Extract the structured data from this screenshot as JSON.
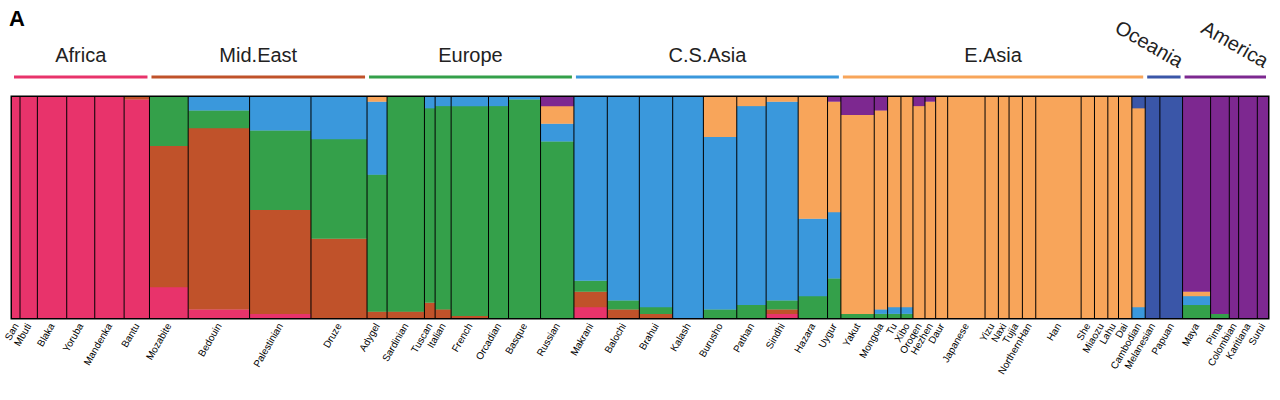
{
  "chart_data": {
    "type": "bar",
    "title": "A",
    "stacked": true,
    "tick_labels": "x",
    "ylim": [
      0,
      1
    ],
    "categories": [
      "San",
      "Mbuti",
      "Blaka",
      "Yoruba",
      "Mandenka",
      "Bantu",
      "Mozabite",
      "Bedouin",
      "Palestinian",
      "Druze",
      "Adygel",
      "Sardinian",
      "Tuscan",
      "Italian",
      "French",
      "Orcadian",
      "Basque",
      "Russian",
      "Makrani",
      "Balochi",
      "Brahui",
      "Kalash",
      "Burusho",
      "Pathan",
      "Sindhi",
      "Hazara",
      "Uygur",
      "Yakut",
      "Mongola",
      "Tu",
      "Xibo",
      "Oroqen",
      "Hezhen",
      "Daur",
      "Japanese",
      "Yizu",
      "Naxi",
      "Tujia",
      "NorthernHan",
      "Han",
      "She",
      "Miaozu",
      "Lahu",
      "Dai",
      "Cambodian",
      "Melanesian",
      "Papuan",
      "Maya",
      "Pima",
      "Colombian",
      "Karitiana",
      "Surui"
    ],
    "sizes": [
      6,
      13,
      22,
      21,
      22,
      19,
      29,
      46,
      46,
      42,
      15,
      28,
      8,
      12,
      28,
      15,
      24,
      25,
      25,
      24,
      25,
      23,
      25,
      22,
      24,
      22,
      10,
      25,
      10,
      10,
      9,
      9,
      8,
      9,
      28,
      10,
      8,
      10,
      10,
      34,
      10,
      10,
      8,
      10,
      10,
      11,
      17,
      21,
      14,
      7,
      14,
      8
    ],
    "series": [
      {
        "color": "#e8336b",
        "values": [
          1,
          1,
          1,
          1,
          1,
          0.99,
          0.14,
          0.04,
          0.02,
          0,
          0,
          0,
          0,
          0,
          0,
          0,
          0,
          0,
          0.05,
          0,
          0,
          0,
          0,
          0,
          0.02,
          0,
          0,
          0,
          0,
          0,
          0,
          0,
          0,
          0,
          0,
          0,
          0,
          0,
          0,
          0,
          0,
          0,
          0,
          0,
          0,
          0,
          0,
          0,
          0,
          0,
          0,
          0
        ]
      },
      {
        "color": "#c0522a",
        "values": [
          0,
          0,
          0,
          0,
          0,
          0.01,
          0.64,
          0.82,
          0.47,
          0.36,
          0.03,
          0.03,
          0.07,
          0.04,
          0.01,
          0,
          0,
          0,
          0.07,
          0.04,
          0.02,
          0,
          0,
          0,
          0.02,
          0,
          0,
          0,
          0,
          0,
          0,
          0,
          0,
          0,
          0,
          0,
          0,
          0,
          0,
          0,
          0,
          0,
          0,
          0,
          0,
          0,
          0,
          0,
          0,
          0,
          0,
          0
        ]
      },
      {
        "color": "#34a04a",
        "values": [
          0,
          0,
          0,
          0,
          0,
          0,
          0.22,
          0.08,
          0.36,
          0.45,
          0.62,
          0.97,
          0.88,
          0.92,
          0.95,
          0.96,
          0.99,
          0.8,
          0.05,
          0.04,
          0.03,
          0,
          0.04,
          0.06,
          0.04,
          0.1,
          0.18,
          0.02,
          0.02,
          0.02,
          0.02,
          0,
          0,
          0,
          0,
          0,
          0,
          0,
          0,
          0,
          0,
          0,
          0,
          0,
          0,
          0,
          0,
          0.06,
          0.02,
          0,
          0,
          0
        ]
      },
      {
        "color": "#3a98dc",
        "values": [
          0,
          0,
          0,
          0,
          0,
          0,
          0,
          0.06,
          0.15,
          0.19,
          0.33,
          0,
          0.05,
          0.04,
          0.04,
          0.04,
          0.01,
          0.08,
          0.83,
          0.92,
          0.95,
          1,
          0.78,
          0.9,
          0.9,
          0.35,
          0.3,
          0,
          0.02,
          0.03,
          0.03,
          0,
          0,
          0,
          0,
          0,
          0,
          0,
          0,
          0,
          0,
          0,
          0,
          0,
          0.05,
          0,
          0,
          0.04,
          0,
          0,
          0,
          0
        ]
      },
      {
        "color": "#f8a55a",
        "values": [
          0,
          0,
          0,
          0,
          0,
          0,
          0,
          0,
          0,
          0,
          0.02,
          0,
          0,
          0,
          0,
          0,
          0,
          0.08,
          0,
          0,
          0,
          0,
          0.18,
          0.04,
          0.02,
          0.55,
          0.5,
          0.9,
          0.9,
          0.95,
          0.95,
          0.96,
          0.98,
          1,
          1,
          1,
          1,
          1,
          1,
          1,
          1,
          1,
          1,
          1,
          0.9,
          0,
          0,
          0.02,
          0,
          0,
          0,
          0
        ]
      },
      {
        "color": "#3a56a8",
        "values": [
          0,
          0,
          0,
          0,
          0,
          0,
          0,
          0,
          0,
          0,
          0,
          0,
          0,
          0,
          0,
          0,
          0,
          0,
          0,
          0,
          0,
          0,
          0,
          0,
          0,
          0,
          0,
          0,
          0,
          0,
          0,
          0,
          0,
          0,
          0,
          0,
          0,
          0,
          0,
          0,
          0,
          0,
          0,
          0,
          0.05,
          1,
          1,
          0,
          0,
          0,
          0,
          0
        ]
      },
      {
        "color": "#7d2890",
        "values": [
          0,
          0,
          0,
          0,
          0,
          0,
          0,
          0,
          0,
          0,
          0,
          0,
          0,
          0,
          0,
          0,
          0,
          0.04,
          0,
          0,
          0,
          0,
          0,
          0,
          0,
          0,
          0.02,
          0.08,
          0.06,
          0,
          0,
          0.04,
          0.02,
          0,
          0,
          0,
          0,
          0,
          0,
          0,
          0,
          0,
          0,
          0,
          0,
          0,
          0,
          0.88,
          0.98,
          1,
          1,
          1
        ]
      }
    ],
    "groups": [
      {
        "label": "Africa",
        "color": "#e8336b",
        "from": "San",
        "to": "Bantu"
      },
      {
        "label": "Mid.East",
        "color": "#c0522a",
        "from": "Mozabite",
        "to": "Druze"
      },
      {
        "label": "Europe",
        "color": "#34a04a",
        "from": "Adygel",
        "to": "Russian"
      },
      {
        "label": "C.S.Asia",
        "color": "#3a98dc",
        "from": "Makrani",
        "to": "Uygur"
      },
      {
        "label": "E.Asia",
        "color": "#f8a55a",
        "from": "Yakut",
        "to": "Cambodian"
      },
      {
        "label": "Oceania",
        "color": "#3a56a8",
        "from": "Melanesian",
        "to": "Papuan"
      },
      {
        "label": "America",
        "color": "#7d2890",
        "from": "Maya",
        "to": "Surui"
      }
    ]
  }
}
